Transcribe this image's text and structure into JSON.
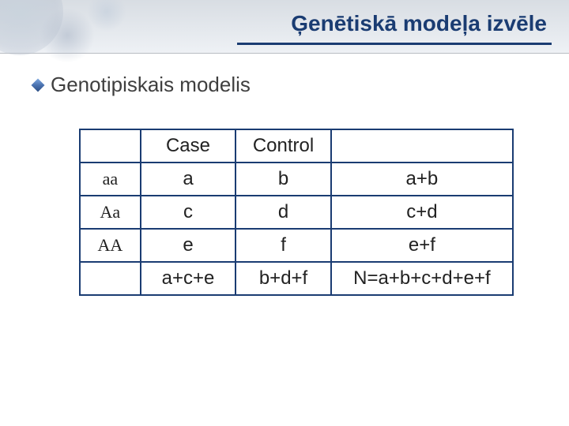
{
  "header": {
    "title": "Ģenētiskā modeļa izvēle",
    "title_color": "#1a3c72",
    "underline_color": "#1a3c72"
  },
  "bullet": {
    "text": "Genotipiskais modelis",
    "text_color": "#3f3f3f"
  },
  "table": {
    "border_color": "#1a3c72",
    "columns": [
      "",
      "Case",
      "Control",
      ""
    ],
    "rows": [
      {
        "label": "aa",
        "case": "a",
        "control": "b",
        "total": "a+b"
      },
      {
        "label": "Aa",
        "case": "c",
        "control": "d",
        "total": "c+d"
      },
      {
        "label": "AA",
        "case": "e",
        "control": "f",
        "total": "e+f"
      }
    ],
    "footer": {
      "label": "",
      "case": "a+c+e",
      "control": "b+d+f",
      "total": "N=a+b+c+d+e+f"
    }
  }
}
